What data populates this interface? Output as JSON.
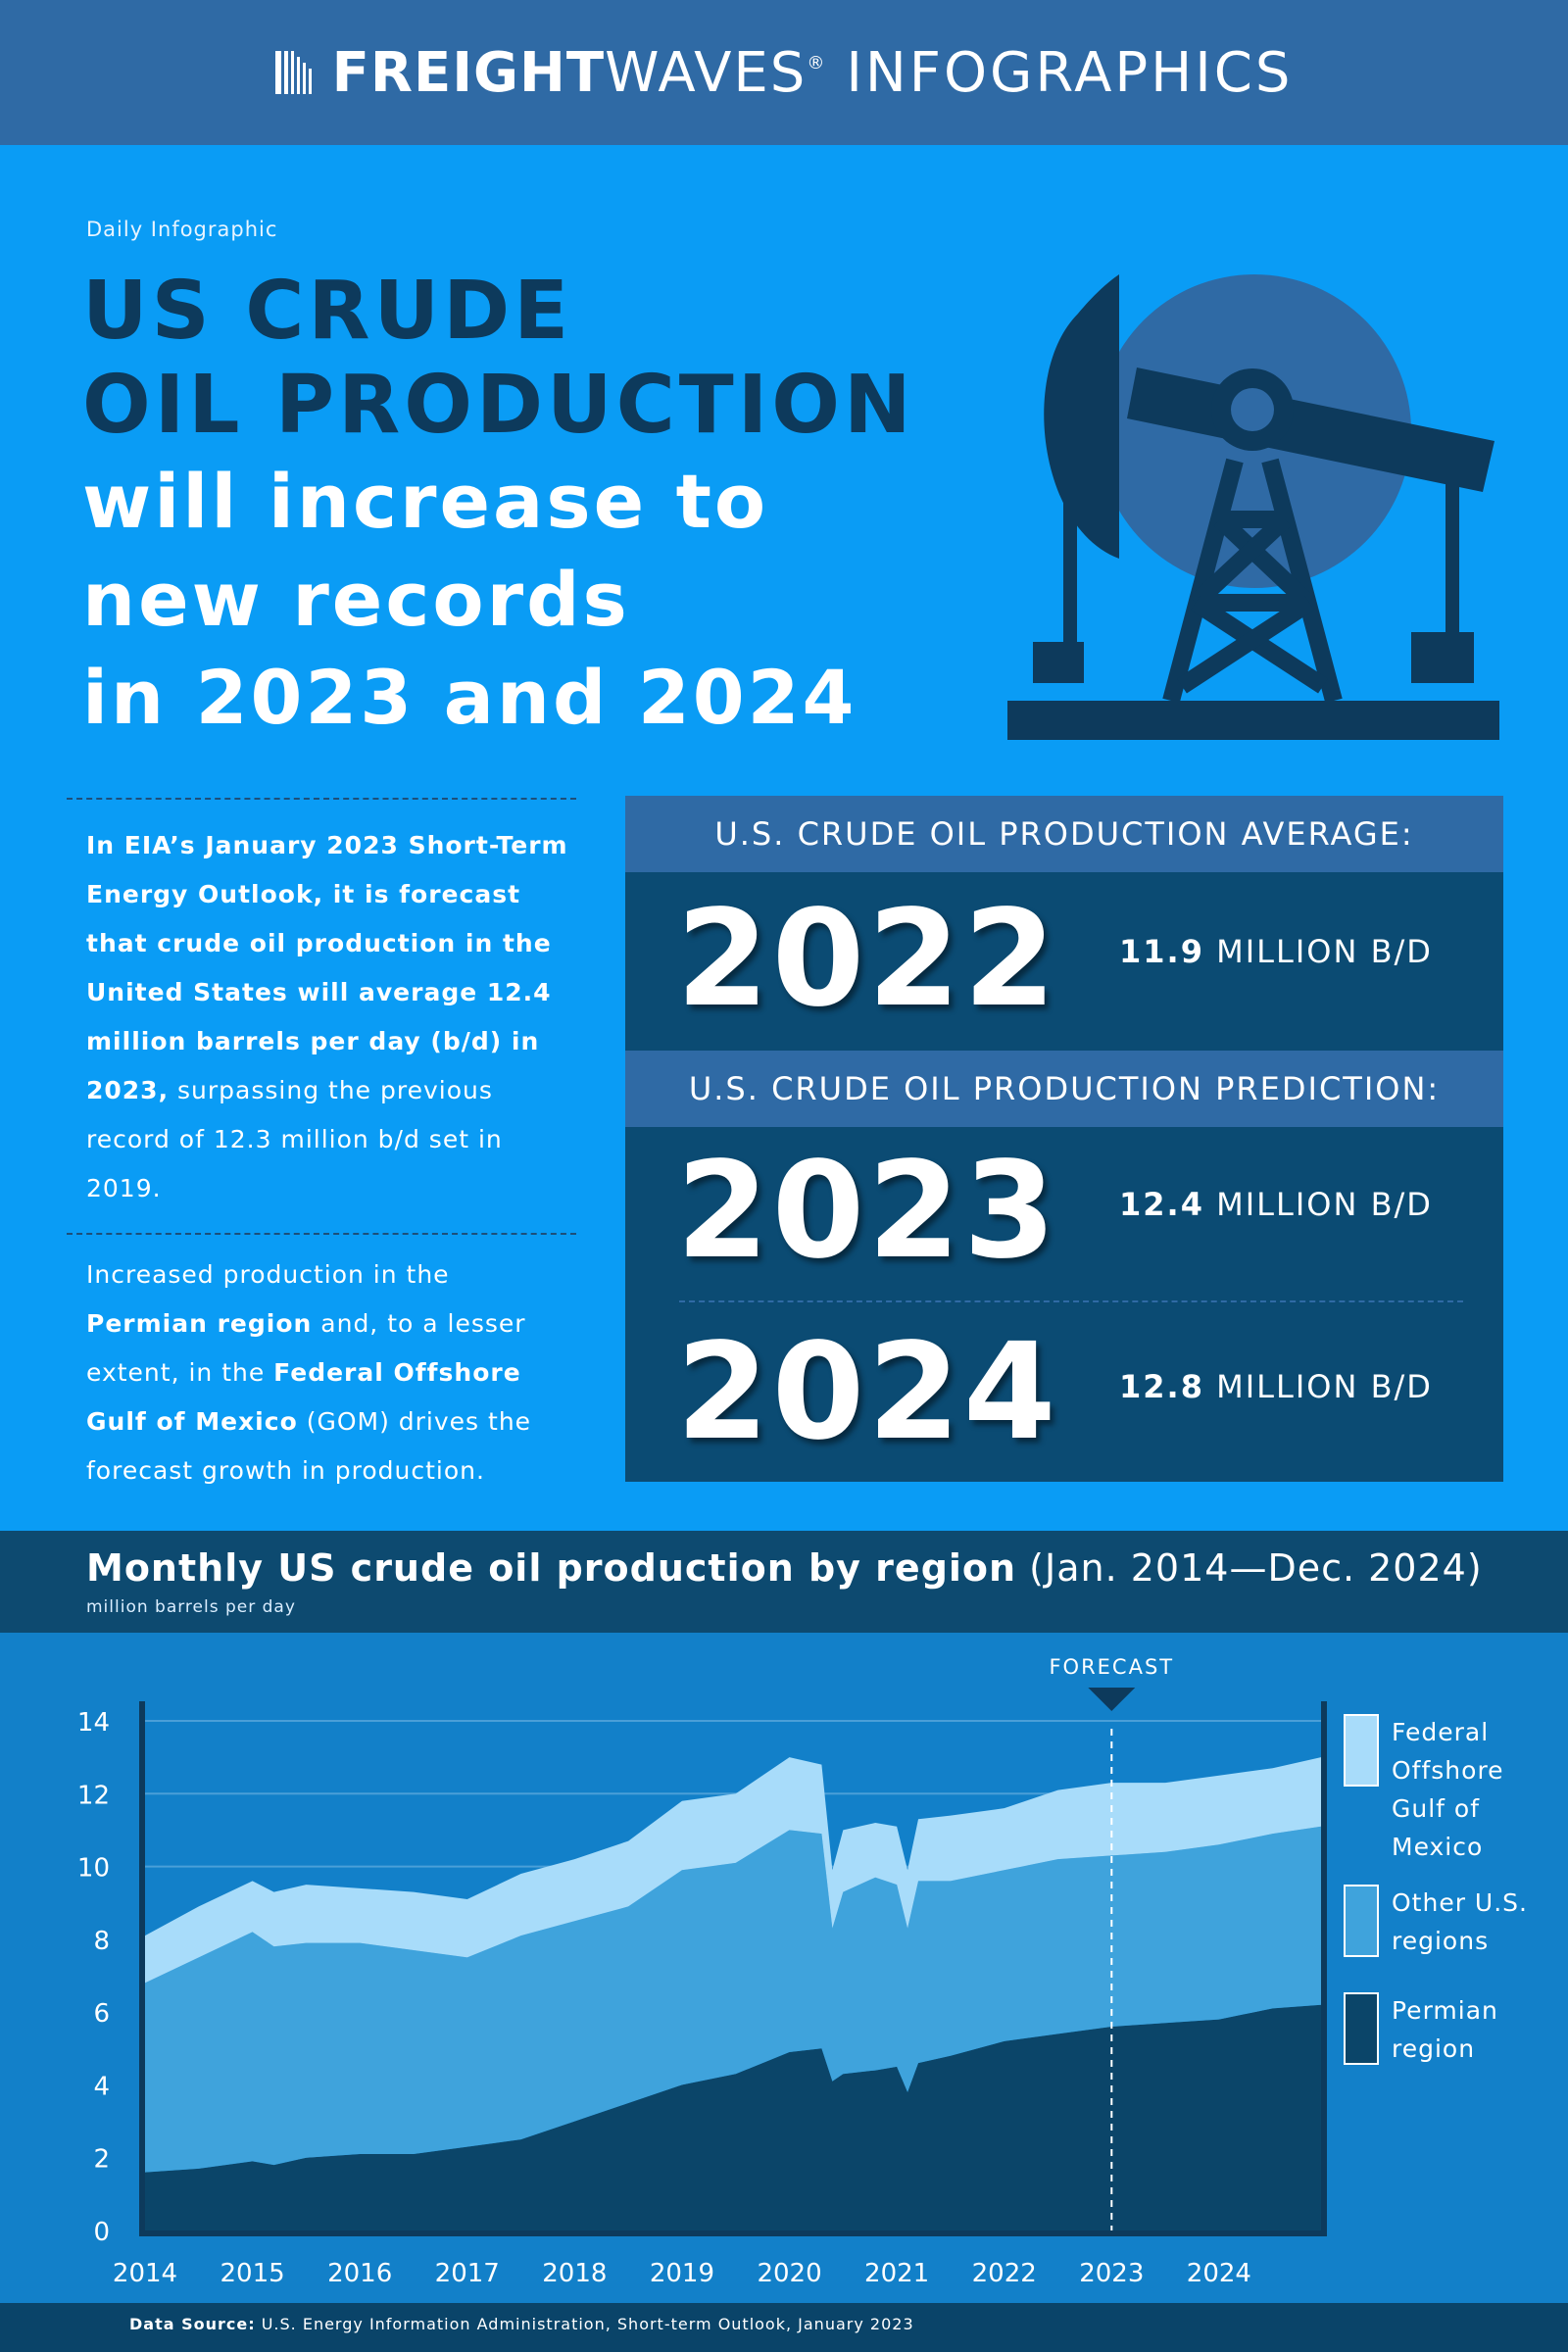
{
  "header": {
    "brand_strong": "FREIGHT",
    "brand_light": "WAVES",
    "brand_mark": "®",
    "brand_suffix": "INFOGRAPHICS"
  },
  "eyebrow": "Daily Infographic",
  "headline": {
    "line1": "US CRUDE",
    "line2": "OIL PRODUCTION",
    "line3": "will increase to",
    "line4": "new records",
    "line5": "in 2023 and 2024"
  },
  "paragraph1": {
    "bold": "In EIA’s January 2023 Short-Term Energy Outlook, it is forecast that crude oil production in the United States will average 12.4 million barrels per day (b/d) in 2023,",
    "rest": " surpassing the previous record of 12.3 million b/d set in 2019."
  },
  "paragraph2": {
    "part1": "Increased production in the ",
    "bold1": "Permian region",
    "part2": " and, to a lesser extent, in the ",
    "bold2": "Federal Offshore Gulf of Mexico",
    "part3": " (GOM) drives the forecast growth in production."
  },
  "stats": {
    "average_header": "U.S. CRUDE OIL PRODUCTION AVERAGE:",
    "prediction_header": "U.S. CRUDE OIL PRODUCTION PREDICTION:",
    "unit": " MILLION B/D",
    "items": [
      {
        "year": "2022",
        "value": "11.9"
      },
      {
        "year": "2023",
        "value": "12.4"
      },
      {
        "year": "2024",
        "value": "12.8"
      }
    ]
  },
  "chart_title": {
    "bold": "Monthly US crude oil production by region",
    "range": " (Jan. 2014—Dec. 2024)"
  },
  "chart_unit": "million barrels per day",
  "source": {
    "label": "Data Source:",
    "text": " U.S. Energy Information Administration, Short-term Outlook, January 2023"
  },
  "colors": {
    "background": "#0a9cf5",
    "header_bar": "#2f6aa5",
    "dark_navy": "#0d3a5c",
    "stat_panel": "#0b4b73",
    "chart_bg": "#1280c9",
    "permian": "#0b4569",
    "other_us": "#3fa3dc",
    "gom": "#a8dcfa"
  },
  "chart_data": {
    "type": "area",
    "stacked": true,
    "title": "Monthly US crude oil production by region (Jan. 2014—Dec. 2024)",
    "ylabel": "million barrels per day",
    "ylim": [
      0,
      14
    ],
    "yticks": [
      0,
      2,
      4,
      6,
      8,
      10,
      12,
      14
    ],
    "xticks": [
      "2014",
      "2015",
      "2016",
      "2017",
      "2018",
      "2019",
      "2020",
      "2021",
      "2022",
      "2023",
      "2024"
    ],
    "grid": true,
    "legend_position": "right",
    "forecast_label": "FORECAST",
    "forecast_start": 2023.0,
    "x": [
      2014.0,
      2014.5,
      2015.0,
      2015.2,
      2015.5,
      2016.0,
      2016.5,
      2017.0,
      2017.5,
      2018.0,
      2018.5,
      2019.0,
      2019.5,
      2020.0,
      2020.3,
      2020.4,
      2020.5,
      2020.8,
      2021.0,
      2021.1,
      2021.2,
      2021.5,
      2022.0,
      2022.5,
      2023.0,
      2023.5,
      2024.0,
      2024.5,
      2024.95
    ],
    "series": [
      {
        "name": "Permian region",
        "color": "#0b4569",
        "values": [
          1.6,
          1.7,
          1.9,
          1.8,
          2.0,
          2.1,
          2.1,
          2.3,
          2.5,
          3.0,
          3.5,
          4.0,
          4.3,
          4.9,
          5.0,
          4.1,
          4.3,
          4.4,
          4.5,
          3.8,
          4.6,
          4.8,
          5.2,
          5.4,
          5.6,
          5.7,
          5.8,
          6.1,
          6.2
        ]
      },
      {
        "name": "Other U.S. regions",
        "color": "#3fa3dc",
        "values": [
          5.2,
          5.8,
          6.3,
          6.0,
          5.9,
          5.8,
          5.6,
          5.2,
          5.6,
          5.5,
          5.4,
          5.9,
          5.8,
          6.1,
          5.9,
          4.2,
          5.0,
          5.3,
          5.0,
          4.5,
          5.0,
          4.8,
          4.7,
          4.8,
          4.7,
          4.7,
          4.8,
          4.8,
          4.9
        ]
      },
      {
        "name": "Federal Offshore Gulf of Mexico",
        "color": "#a8dcfa",
        "values": [
          1.3,
          1.4,
          1.4,
          1.5,
          1.6,
          1.5,
          1.6,
          1.6,
          1.7,
          1.7,
          1.8,
          1.9,
          1.9,
          2.0,
          1.9,
          1.6,
          1.7,
          1.5,
          1.6,
          1.6,
          1.7,
          1.8,
          1.7,
          1.9,
          2.0,
          1.9,
          1.9,
          1.8,
          1.9
        ]
      }
    ]
  }
}
